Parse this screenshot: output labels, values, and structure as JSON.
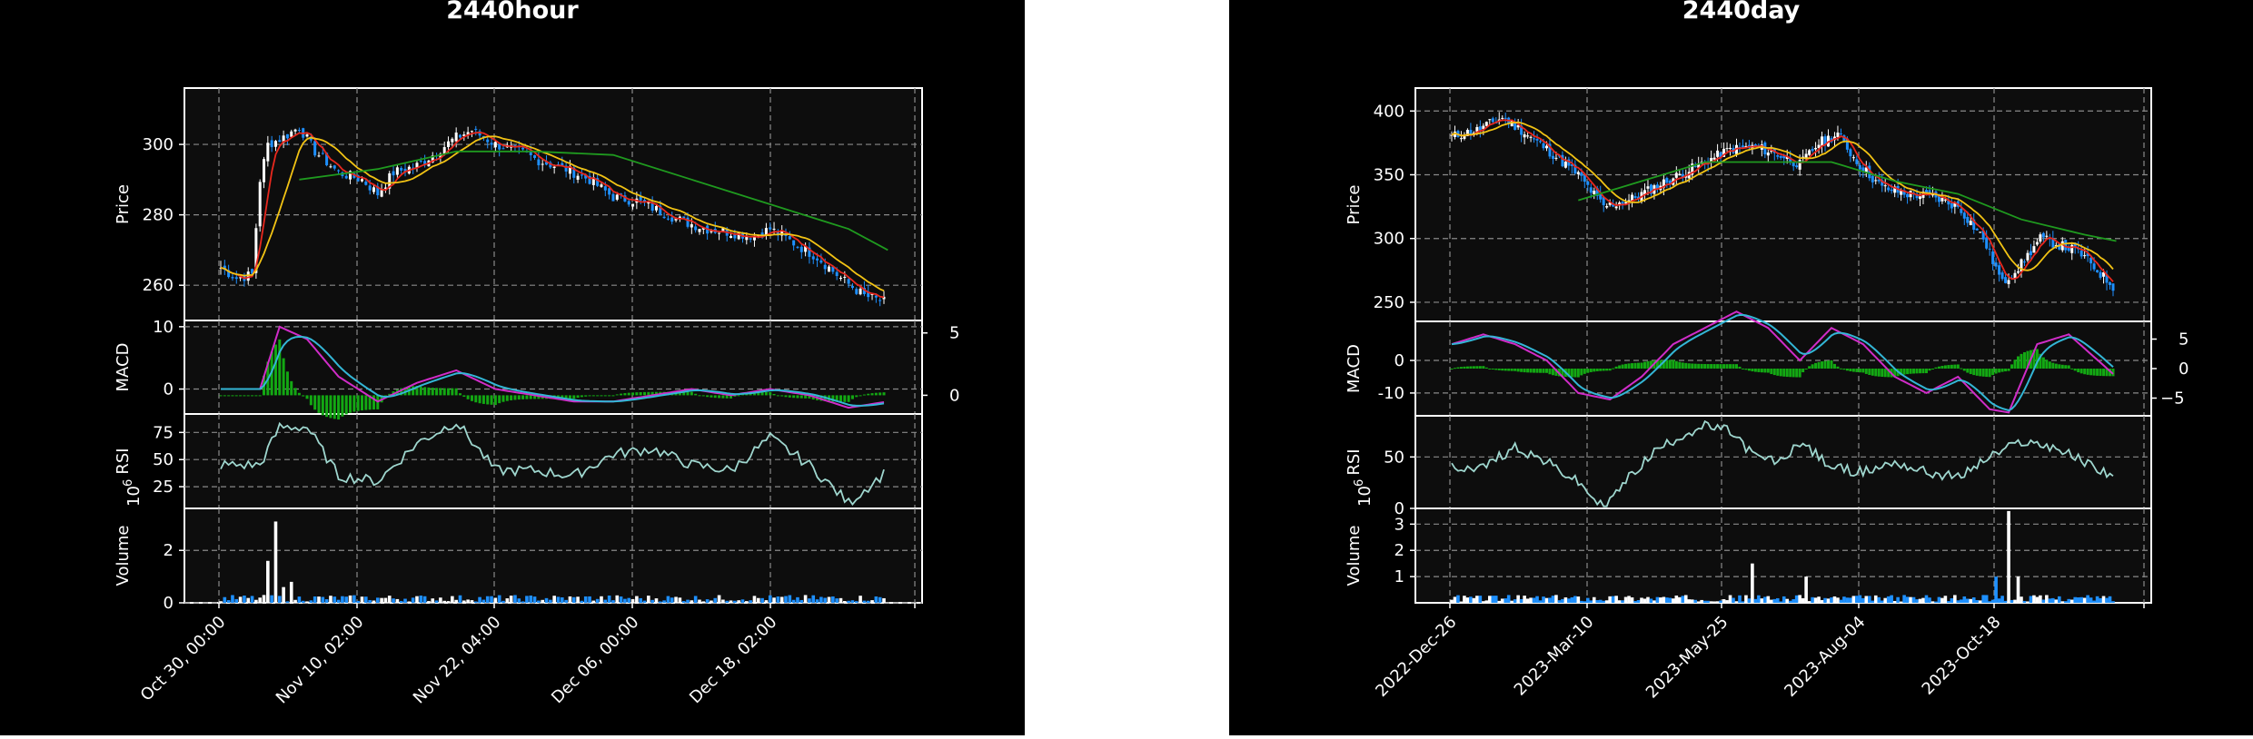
{
  "charts": [
    {
      "title": "2440hour",
      "x_ticks": [
        "Oct 30, 00:00",
        "Nov 10, 02:00",
        "Nov 22, 04:00",
        "Dec 06, 00:00",
        "Dec 18, 02:00"
      ],
      "panels": {
        "price": {
          "ylabel": "Price",
          "ylim": [
            250,
            316
          ],
          "ticks": [
            260,
            280,
            300
          ]
        },
        "macd": {
          "ylabel": "MACD",
          "ylim": [
            -4,
            11
          ],
          "ticks": [
            0,
            10
          ],
          "right_ylim": [
            -1.5,
            6
          ],
          "right_ticks": [
            0,
            5
          ]
        },
        "rsi": {
          "ylabel": "RSI",
          "ylim": [
            5,
            92
          ],
          "ticks": [
            25,
            50,
            75
          ]
        },
        "volume": {
          "ylabel": "Volume",
          "exponent": "10",
          "exponent_power": "6",
          "ylim": [
            0,
            3.6
          ],
          "ticks": [
            0,
            2
          ]
        }
      }
    },
    {
      "title": "2440day",
      "x_ticks": [
        "2022-Dec-26",
        "2023-Mar-10",
        "2023-May-25",
        "2023-Aug-04",
        "2023-Oct-18"
      ],
      "panels": {
        "price": {
          "ylabel": "Price",
          "ylim": [
            235,
            418
          ],
          "ticks": [
            250,
            300,
            350,
            400
          ]
        },
        "macd": {
          "ylabel": "MACD",
          "ylim": [
            -17,
            12
          ],
          "ticks": [
            -10,
            0
          ],
          "right_ylim": [
            -8,
            8
          ],
          "right_ticks": [
            -5,
            0,
            5
          ]
        },
        "rsi": {
          "ylabel": "RSI",
          "ylim": [
            0,
            90
          ],
          "ticks": [
            0,
            50
          ]
        },
        "volume": {
          "ylabel": "Volume",
          "exponent": "10",
          "exponent_power": "6",
          "ylim": [
            0,
            3.6
          ],
          "ticks": [
            1,
            2,
            3
          ]
        }
      }
    }
  ],
  "chart_data": [
    {
      "type": "candlestick",
      "title": "2440hour",
      "x_ticks": [
        "Oct 30, 00:00",
        "Nov 10, 02:00",
        "Nov 22, 04:00",
        "Dec 06, 00:00",
        "Dec 18, 02:00"
      ],
      "close_approx": [
        [
          0,
          265
        ],
        [
          4,
          262
        ],
        [
          8,
          263
        ],
        [
          10,
          290
        ],
        [
          12,
          300
        ],
        [
          16,
          302
        ],
        [
          20,
          305
        ],
        [
          24,
          298
        ],
        [
          30,
          292
        ],
        [
          36,
          290
        ],
        [
          40,
          286
        ],
        [
          44,
          292
        ],
        [
          50,
          294
        ],
        [
          54,
          297
        ],
        [
          60,
          302
        ],
        [
          64,
          304
        ],
        [
          70,
          300
        ],
        [
          76,
          298
        ],
        [
          82,
          295
        ],
        [
          88,
          293
        ],
        [
          94,
          290
        ],
        [
          100,
          285
        ],
        [
          106,
          284
        ],
        [
          112,
          281
        ],
        [
          118,
          278
        ],
        [
          124,
          276
        ],
        [
          130,
          275
        ],
        [
          136,
          274
        ],
        [
          140,
          276
        ],
        [
          146,
          272
        ],
        [
          152,
          268
        ],
        [
          158,
          262
        ],
        [
          164,
          257
        ],
        [
          170,
          255
        ]
      ],
      "moving_average_long_approx": [
        [
          20,
          290
        ],
        [
          40,
          293
        ],
        [
          60,
          298
        ],
        [
          80,
          298
        ],
        [
          100,
          297
        ],
        [
          120,
          290
        ],
        [
          140,
          283
        ],
        [
          160,
          276
        ],
        [
          170,
          270
        ]
      ],
      "macd_approx": [
        [
          0,
          0
        ],
        [
          10,
          0
        ],
        [
          15,
          10
        ],
        [
          22,
          8
        ],
        [
          30,
          2
        ],
        [
          40,
          -2
        ],
        [
          50,
          1
        ],
        [
          60,
          3
        ],
        [
          70,
          0
        ],
        [
          80,
          -1
        ],
        [
          90,
          -2
        ],
        [
          100,
          -2
        ],
        [
          110,
          -1
        ],
        [
          120,
          0
        ],
        [
          130,
          -1
        ],
        [
          140,
          0
        ],
        [
          150,
          -1
        ],
        [
          160,
          -3
        ],
        [
          170,
          -2
        ]
      ],
      "rsi_approx": [
        [
          10,
          45
        ],
        [
          15,
          80
        ],
        [
          22,
          80
        ],
        [
          30,
          35
        ],
        [
          40,
          30
        ],
        [
          50,
          65
        ],
        [
          60,
          85
        ],
        [
          70,
          40
        ],
        [
          80,
          40
        ],
        [
          90,
          35
        ],
        [
          100,
          55
        ],
        [
          110,
          60
        ],
        [
          120,
          45
        ],
        [
          130,
          40
        ],
        [
          140,
          70
        ],
        [
          150,
          45
        ],
        [
          160,
          10
        ],
        [
          170,
          40
        ]
      ],
      "volume_peaks_approx": [
        [
          12,
          1.6
        ],
        [
          14,
          3.1
        ],
        [
          16,
          0.6
        ],
        [
          18,
          0.8
        ]
      ],
      "ylim": [
        250,
        316
      ]
    },
    {
      "type": "candlestick",
      "title": "2440day",
      "x_ticks": [
        "2022-Dec-26",
        "2023-Mar-10",
        "2023-May-25",
        "2023-Aug-04",
        "2023-Oct-18"
      ],
      "close_approx": [
        [
          0,
          380
        ],
        [
          8,
          385
        ],
        [
          16,
          395
        ],
        [
          22,
          385
        ],
        [
          30,
          370
        ],
        [
          40,
          350
        ],
        [
          48,
          325
        ],
        [
          56,
          330
        ],
        [
          64,
          340
        ],
        [
          72,
          350
        ],
        [
          80,
          360
        ],
        [
          88,
          370
        ],
        [
          96,
          372
        ],
        [
          104,
          365
        ],
        [
          110,
          358
        ],
        [
          116,
          375
        ],
        [
          122,
          382
        ],
        [
          128,
          360
        ],
        [
          136,
          340
        ],
        [
          144,
          335
        ],
        [
          152,
          333
        ],
        [
          160,
          325
        ],
        [
          168,
          300
        ],
        [
          174,
          265
        ],
        [
          180,
          280
        ],
        [
          186,
          300
        ],
        [
          192,
          295
        ],
        [
          198,
          290
        ],
        [
          204,
          275
        ],
        [
          210,
          260
        ]
      ],
      "moving_average_long_approx": [
        [
          40,
          330
        ],
        [
          60,
          345
        ],
        [
          80,
          360
        ],
        [
          100,
          360
        ],
        [
          120,
          360
        ],
        [
          140,
          345
        ],
        [
          160,
          335
        ],
        [
          180,
          315
        ],
        [
          200,
          303
        ],
        [
          210,
          298
        ]
      ],
      "macd_approx": [
        [
          0,
          5
        ],
        [
          10,
          8
        ],
        [
          20,
          5
        ],
        [
          30,
          0
        ],
        [
          40,
          -10
        ],
        [
          50,
          -12
        ],
        [
          60,
          -5
        ],
        [
          70,
          5
        ],
        [
          80,
          10
        ],
        [
          90,
          15
        ],
        [
          100,
          10
        ],
        [
          110,
          0
        ],
        [
          120,
          10
        ],
        [
          130,
          5
        ],
        [
          140,
          -5
        ],
        [
          150,
          -10
        ],
        [
          160,
          -5
        ],
        [
          170,
          -15
        ],
        [
          176,
          -16
        ],
        [
          185,
          5
        ],
        [
          195,
          8
        ],
        [
          210,
          -5
        ]
      ],
      "rsi_approx": [
        [
          10,
          40
        ],
        [
          20,
          60
        ],
        [
          30,
          45
        ],
        [
          40,
          25
        ],
        [
          48,
          0
        ],
        [
          56,
          30
        ],
        [
          64,
          55
        ],
        [
          72,
          70
        ],
        [
          80,
          80
        ],
        [
          88,
          75
        ],
        [
          96,
          50
        ],
        [
          104,
          45
        ],
        [
          110,
          65
        ],
        [
          120,
          40
        ],
        [
          130,
          35
        ],
        [
          140,
          45
        ],
        [
          150,
          35
        ],
        [
          160,
          30
        ],
        [
          170,
          50
        ],
        [
          180,
          65
        ],
        [
          190,
          60
        ],
        [
          200,
          45
        ],
        [
          210,
          30
        ]
      ],
      "volume_peaks_approx": [
        [
          95,
          1.5
        ],
        [
          112,
          1.0
        ],
        [
          176,
          3.5
        ],
        [
          172,
          1.0
        ],
        [
          179,
          1.0
        ]
      ],
      "ylim": [
        235,
        418
      ]
    }
  ]
}
